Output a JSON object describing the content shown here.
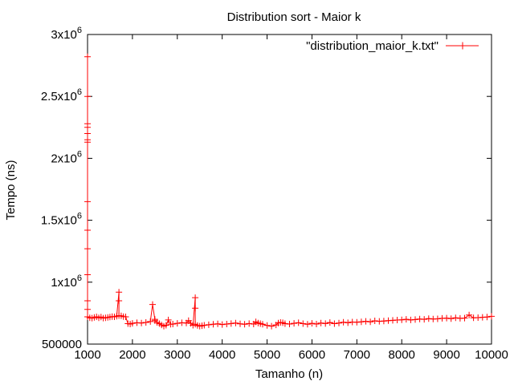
{
  "chart_data": {
    "type": "line",
    "title": "Distribution sort - Maior k",
    "xlabel": "Tamanho (n)",
    "ylabel": "Tempo (ns)",
    "xlim": [
      1000,
      10000
    ],
    "ylim": [
      500000,
      3000000
    ],
    "x_ticks": [
      1000,
      2000,
      3000,
      4000,
      5000,
      6000,
      7000,
      8000,
      9000,
      10000
    ],
    "y_ticks": [
      {
        "value": 500000,
        "base": "500000",
        "exp": ""
      },
      {
        "value": 1000000,
        "base": "1x10",
        "exp": "6"
      },
      {
        "value": 1500000,
        "base": "1.5x10",
        "exp": "6"
      },
      {
        "value": 2000000,
        "base": "2x10",
        "exp": "6"
      },
      {
        "value": 2500000,
        "base": "2.5x10",
        "exp": "6"
      },
      {
        "value": 3000000,
        "base": "3x10",
        "exp": "6"
      }
    ],
    "legend": {
      "label": "\"distribution_maior_k.txt\"",
      "position": "top-right"
    },
    "grid": false,
    "color": "#ff0000",
    "series": [
      {
        "name": "\"distribution_maior_k.txt\"",
        "marker": "plus",
        "x": [
          1000,
          1000,
          1000,
          1000,
          1000,
          1000,
          1000,
          1000,
          1000,
          1000,
          1000,
          1000,
          1000,
          1000,
          1050,
          1100,
          1150,
          1200,
          1250,
          1300,
          1350,
          1400,
          1450,
          1500,
          1550,
          1600,
          1650,
          1700,
          1700,
          1700,
          1750,
          1800,
          1850,
          1900,
          1950,
          2000,
          2100,
          2200,
          2300,
          2400,
          2450,
          2500,
          2500,
          2550,
          2600,
          2650,
          2700,
          2750,
          2800,
          2850,
          2900,
          3000,
          3100,
          3200,
          3250,
          3300,
          3350,
          3400,
          3400,
          3400,
          3450,
          3500,
          3550,
          3600,
          3700,
          3800,
          3900,
          4000,
          4100,
          4200,
          4300,
          4400,
          4500,
          4600,
          4700,
          4750,
          4800,
          4850,
          4900,
          5000,
          5100,
          5200,
          5250,
          5300,
          5350,
          5400,
          5500,
          5600,
          5700,
          5800,
          5900,
          6000,
          6100,
          6200,
          6300,
          6400,
          6500,
          6600,
          6700,
          6800,
          6900,
          7000,
          7100,
          7200,
          7300,
          7400,
          7500,
          7600,
          7700,
          7800,
          7900,
          8000,
          8100,
          8200,
          8300,
          8400,
          8500,
          8600,
          8700,
          8800,
          8900,
          9000,
          9100,
          9200,
          9300,
          9400,
          9500,
          9600,
          9700,
          9800,
          9900,
          10000
        ],
        "y": [
          2820000,
          2500000,
          2280000,
          2250000,
          2200000,
          2150000,
          2130000,
          1650000,
          1420000,
          1270000,
          1060000,
          850000,
          780000,
          720000,
          712000,
          710000,
          715000,
          720000,
          712000,
          718000,
          710000,
          712000,
          715000,
          718000,
          722000,
          720000,
          725000,
          920000,
          850000,
          730000,
          728000,
          722000,
          720000,
          665000,
          662000,
          668000,
          672000,
          670000,
          675000,
          682000,
          820000,
          700000,
          690000,
          675000,
          665000,
          655000,
          645000,
          652000,
          695000,
          660000,
          662000,
          668000,
          672000,
          670000,
          690000,
          668000,
          652000,
          875000,
          790000,
          660000,
          650000,
          645000,
          648000,
          652000,
          656000,
          660000,
          664000,
          658000,
          662000,
          666000,
          670000,
          664000,
          660000,
          666000,
          662000,
          680000,
          670000,
          665000,
          660000,
          650000,
          645000,
          655000,
          670000,
          675000,
          672000,
          665000,
          662000,
          668000,
          672000,
          665000,
          660000,
          668000,
          662000,
          670000,
          666000,
          674000,
          665000,
          670000,
          676000,
          672000,
          678000,
          676000,
          680000,
          684000,
          680000,
          688000,
          684000,
          686000,
          690000,
          692000,
          694000,
          696000,
          700000,
          695000,
          698000,
          702000,
          700000,
          706000,
          702000,
          704000,
          708000,
          710000,
          706000,
          712000,
          708000,
          710000,
          735000,
          712000,
          714000,
          716000,
          718000,
          724000
        ]
      }
    ]
  }
}
